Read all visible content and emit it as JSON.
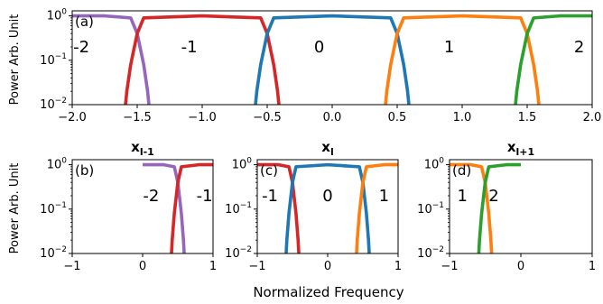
{
  "figure": {
    "xlabel": "Normalized Frequency",
    "ylabel": "Power Arb. Unit"
  },
  "colors": {
    "-2": "#9467bd",
    "-1": "#d62728",
    "0": "#1f77b4",
    "1": "#ff7f0e",
    "2": "#2ca02c"
  },
  "chart_data": [
    {
      "type": "line",
      "panel": "(a)",
      "title": "",
      "xlim": [
        -2.0,
        2.0
      ],
      "ylim": [
        0.01,
        1.3
      ],
      "yscale": "log",
      "xticks": [
        -2.0,
        -1.5,
        -1.0,
        -0.5,
        0.0,
        0.5,
        1.0,
        1.5,
        2.0
      ],
      "xtick_labels": [
        "−2.0",
        "−1.5",
        "−1.0",
        "−0.5",
        "0.0",
        "0.5",
        "1.0",
        "1.5",
        "2.0"
      ],
      "yticks": [
        0.01,
        0.1,
        1
      ],
      "ytick_labels": [
        "10⁻²",
        "10⁻¹",
        "10⁰"
      ],
      "series": [
        {
          "key": "-2",
          "x": [
            -2.0,
            -1.75,
            -1.55,
            -1.5,
            -1.45,
            -1.42,
            -1.41
          ],
          "y": [
            1,
            1,
            0.9,
            0.4,
            0.08,
            0.02,
            0.01
          ]
        },
        {
          "key": "-1",
          "x": [
            -1.59,
            -1.58,
            -1.55,
            -1.5,
            -1.45,
            -1.0,
            -0.55,
            -0.5,
            -0.45,
            -0.42,
            -0.41
          ],
          "y": [
            0.01,
            0.02,
            0.08,
            0.4,
            0.9,
            1,
            0.9,
            0.4,
            0.08,
            0.02,
            0.01
          ]
        },
        {
          "key": "0",
          "x": [
            -0.59,
            -0.58,
            -0.55,
            -0.5,
            -0.45,
            0.0,
            0.45,
            0.5,
            0.55,
            0.58,
            0.59
          ],
          "y": [
            0.01,
            0.02,
            0.08,
            0.4,
            0.9,
            1,
            0.9,
            0.4,
            0.08,
            0.02,
            0.01
          ]
        },
        {
          "key": "1",
          "x": [
            0.41,
            0.42,
            0.45,
            0.5,
            0.55,
            1.0,
            1.45,
            1.5,
            1.55,
            1.58,
            1.59
          ],
          "y": [
            0.01,
            0.02,
            0.08,
            0.4,
            0.9,
            1,
            0.9,
            0.4,
            0.08,
            0.02,
            0.01
          ]
        },
        {
          "key": "2",
          "x": [
            1.41,
            1.42,
            1.45,
            1.5,
            1.55,
            1.75,
            2.0
          ],
          "y": [
            0.01,
            0.02,
            0.08,
            0.4,
            0.9,
            1,
            1
          ]
        }
      ],
      "labels": [
        {
          "text": "-2",
          "x": -1.93,
          "y": 0.2
        },
        {
          "text": "-1",
          "x": -1.1,
          "y": 0.2
        },
        {
          "text": "0",
          "x": -0.1,
          "y": 0.2
        },
        {
          "text": "1",
          "x": 0.9,
          "y": 0.2
        },
        {
          "text": "2",
          "x": 1.9,
          "y": 0.2
        }
      ]
    },
    {
      "type": "line",
      "panel": "(b)",
      "title": "x",
      "title_sub": "l-1",
      "xlim": [
        -1,
        1
      ],
      "ylim": [
        0.01,
        1.3
      ],
      "yscale": "log",
      "xticks": [
        -1,
        0,
        1
      ],
      "xtick_labels": [
        "−1",
        "0",
        "1"
      ],
      "yticks": [
        0.01,
        0.1,
        1
      ],
      "ytick_labels": [
        "10⁻²",
        "10⁻¹",
        "10⁰"
      ],
      "series": [
        {
          "key": "-2",
          "x": [
            0.0,
            0.3,
            0.45,
            0.5,
            0.55,
            0.58,
            0.59
          ],
          "y": [
            1,
            1,
            0.9,
            0.4,
            0.08,
            0.02,
            0.01
          ]
        },
        {
          "key": "-1",
          "x": [
            0.41,
            0.42,
            0.45,
            0.5,
            0.55,
            0.8,
            1.0
          ],
          "y": [
            0.01,
            0.02,
            0.08,
            0.4,
            0.9,
            1,
            1
          ]
        }
      ],
      "labels": [
        {
          "text": "-2",
          "x": 0.12,
          "y": 0.2
        },
        {
          "text": "-1",
          "x": 0.88,
          "y": 0.2
        }
      ]
    },
    {
      "type": "line",
      "panel": "(c)",
      "title": "x",
      "title_sub": "l",
      "xlim": [
        -1,
        1
      ],
      "ylim": [
        0.01,
        1.3
      ],
      "yscale": "log",
      "xticks": [
        -1,
        0,
        1
      ],
      "xtick_labels": [
        "−1",
        "0",
        "1"
      ],
      "yticks": [
        0.01,
        0.1,
        1
      ],
      "ytick_labels": [
        "10⁻²",
        "10⁻¹",
        "10⁰"
      ],
      "series": [
        {
          "key": "-1",
          "x": [
            -1.0,
            -0.7,
            -0.55,
            -0.5,
            -0.45,
            -0.42,
            -0.41
          ],
          "y": [
            1,
            1,
            0.9,
            0.4,
            0.08,
            0.02,
            0.01
          ]
        },
        {
          "key": "0",
          "x": [
            -0.59,
            -0.58,
            -0.55,
            -0.5,
            -0.45,
            0.0,
            0.45,
            0.5,
            0.55,
            0.58,
            0.59
          ],
          "y": [
            0.01,
            0.02,
            0.08,
            0.4,
            0.9,
            1,
            0.9,
            0.4,
            0.08,
            0.02,
            0.01
          ]
        },
        {
          "key": "1",
          "x": [
            0.41,
            0.42,
            0.45,
            0.5,
            0.55,
            0.8,
            1.0
          ],
          "y": [
            0.01,
            0.02,
            0.08,
            0.4,
            0.9,
            1,
            1
          ]
        }
      ],
      "labels": [
        {
          "text": "-1",
          "x": -0.82,
          "y": 0.2
        },
        {
          "text": "0",
          "x": 0.0,
          "y": 0.2
        },
        {
          "text": "1",
          "x": 0.8,
          "y": 0.2
        }
      ]
    },
    {
      "type": "line",
      "panel": "(d)",
      "title": "x",
      "title_sub": "l+1",
      "xlim": [
        -1,
        1
      ],
      "ylim": [
        0.01,
        1.3
      ],
      "yscale": "log",
      "xticks": [
        -1,
        0,
        1
      ],
      "xtick_labels": [
        "−1",
        "0",
        "1"
      ],
      "yticks": [
        0.01,
        0.1,
        1
      ],
      "ytick_labels": [
        "10⁻²",
        "10⁻¹",
        "10⁰"
      ],
      "series": [
        {
          "key": "1",
          "x": [
            -1.0,
            -0.7,
            -0.55,
            -0.5,
            -0.45,
            -0.42,
            -0.41
          ],
          "y": [
            1,
            1,
            0.9,
            0.4,
            0.08,
            0.02,
            0.01
          ]
        },
        {
          "key": "2",
          "x": [
            -0.59,
            -0.58,
            -0.55,
            -0.5,
            -0.45,
            -0.2,
            0.0
          ],
          "y": [
            0.01,
            0.02,
            0.08,
            0.4,
            0.9,
            1,
            1
          ]
        }
      ],
      "labels": [
        {
          "text": "1",
          "x": -0.82,
          "y": 0.2
        },
        {
          "text": "2",
          "x": -0.38,
          "y": 0.2
        }
      ]
    }
  ]
}
